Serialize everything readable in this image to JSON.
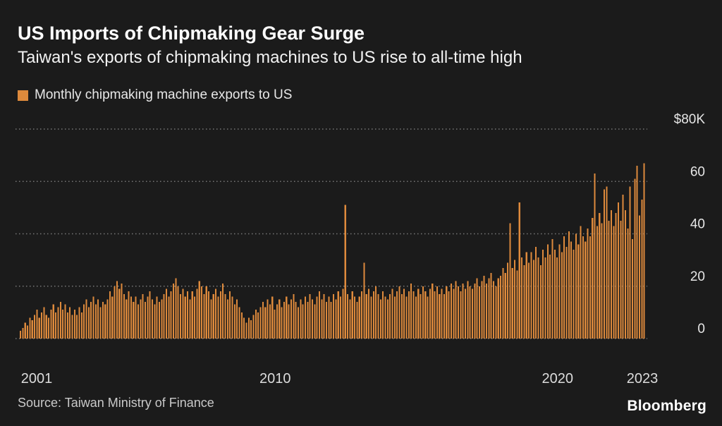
{
  "branding": {
    "logo": "Bloomberg"
  },
  "chart_data": {
    "type": "bar",
    "title": "US Imports of Chipmaking Gear Surge",
    "subtitle": "Taiwan's exports of chipmaking machines to US rise to all-time high",
    "legend": "Monthly chipmaking machine exports to US",
    "source": "Source: Taiwan Ministry of Finance",
    "bar_color": "#de8a3c",
    "grid_color": "#777777",
    "ylim": [
      0,
      80
    ],
    "yticks": [
      0,
      20,
      40,
      60,
      80
    ],
    "ytick_labels": [
      "0",
      "20",
      "40",
      "60",
      "$80K"
    ],
    "xticks": [
      2001,
      2010,
      2020,
      2023
    ],
    "start_year": 2001,
    "units": "thousand USD per month",
    "values": [
      3,
      4,
      6,
      5,
      8,
      7,
      9,
      11,
      8,
      10,
      12,
      9,
      8,
      11,
      13,
      10,
      12,
      14,
      11,
      13,
      10,
      12,
      9,
      11,
      9,
      12,
      10,
      13,
      15,
      12,
      14,
      16,
      13,
      15,
      12,
      14,
      13,
      15,
      18,
      16,
      20,
      22,
      19,
      21,
      17,
      15,
      18,
      16,
      14,
      16,
      13,
      15,
      17,
      14,
      16,
      18,
      15,
      13,
      16,
      14,
      15,
      17,
      19,
      16,
      18,
      21,
      23,
      20,
      17,
      19,
      16,
      18,
      15,
      18,
      16,
      19,
      22,
      20,
      17,
      20,
      18,
      15,
      17,
      19,
      16,
      18,
      21,
      17,
      15,
      18,
      16,
      13,
      15,
      12,
      10,
      8,
      6,
      8,
      7,
      9,
      11,
      10,
      12,
      14,
      12,
      15,
      13,
      16,
      11,
      13,
      15,
      12,
      14,
      16,
      13,
      15,
      17,
      14,
      12,
      15,
      13,
      16,
      14,
      17,
      15,
      13,
      16,
      18,
      15,
      17,
      14,
      16,
      14,
      17,
      15,
      18,
      16,
      19,
      51,
      17,
      15,
      18,
      16,
      14,
      16,
      18,
      29,
      17,
      19,
      16,
      18,
      20,
      17,
      15,
      18,
      16,
      15,
      17,
      19,
      16,
      18,
      20,
      17,
      19,
      16,
      18,
      21,
      18,
      16,
      19,
      17,
      20,
      18,
      16,
      19,
      21,
      18,
      20,
      17,
      19,
      17,
      20,
      18,
      21,
      19,
      22,
      20,
      18,
      21,
      19,
      22,
      20,
      19,
      21,
      23,
      20,
      22,
      24,
      21,
      23,
      25,
      22,
      20,
      23,
      24,
      27,
      25,
      29,
      44,
      27,
      30,
      26,
      52,
      31,
      28,
      33,
      29,
      33,
      30,
      35,
      31,
      28,
      34,
      31,
      36,
      32,
      38,
      34,
      31,
      36,
      33,
      39,
      35,
      41,
      37,
      34,
      40,
      36,
      43,
      39,
      37,
      42,
      39,
      46,
      63,
      43,
      48,
      44,
      57,
      58,
      45,
      49,
      43,
      48,
      52,
      45,
      55,
      49,
      42,
      58,
      38,
      61,
      66,
      47,
      53,
      67
    ]
  }
}
